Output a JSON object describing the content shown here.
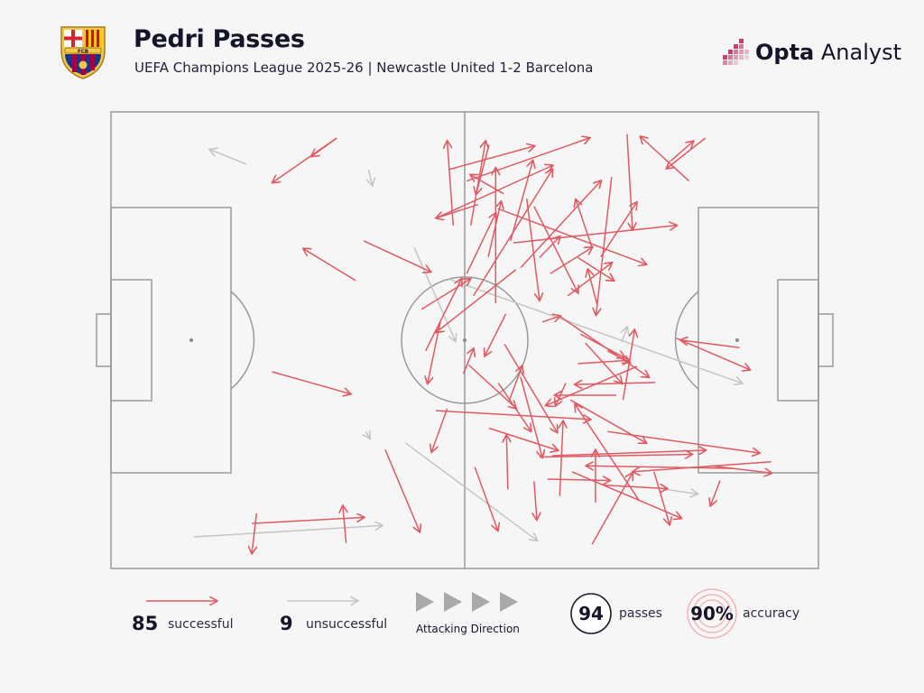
{
  "header": {
    "title": "Pedri Passes",
    "subtitle": "UEFA Champions League 2025-26 | Newcastle United 1-2 Barcelona",
    "brand_bold": "Opta",
    "brand_light": " Analyst",
    "crest_text": "FCB"
  },
  "colors": {
    "successful": "#e05a63",
    "unsuccessful": "#c5c5c5",
    "pitch_lines": "#9a9a9a",
    "background": "#f6f6f6",
    "accent": "#d63a6d"
  },
  "legend": {
    "successful_count": "85",
    "successful_label": "successful",
    "unsuccessful_count": "9",
    "unsuccessful_label": "unsuccessful",
    "attacking_direction": "Attacking Direction",
    "passes_count": "94",
    "passes_label": "passes",
    "accuracy_value": "90%",
    "accuracy_label": "accuracy"
  },
  "chart_data": {
    "type": "pass-map",
    "pitch": {
      "length": 105,
      "width": 68,
      "attacking_direction": "left-to-right"
    },
    "units": "metres; x from own goal line, y from top touchline",
    "totals": {
      "passes": 94,
      "successful": 85,
      "unsuccessful": 9,
      "accuracy_pct": 90
    },
    "unsuccessful": [
      [
        20.1,
        7.8,
        14.7,
        5.6
      ],
      [
        38.2,
        8.6,
        38.8,
        10.9
      ],
      [
        45.0,
        20.2,
        51.1,
        34.1
      ],
      [
        50.2,
        24.9,
        93.6,
        40.4
      ],
      [
        37.8,
        47.6,
        38.4,
        48.6
      ],
      [
        12.3,
        63.3,
        40.2,
        61.6
      ],
      [
        43.7,
        49.3,
        63.2,
        63.8
      ],
      [
        75.8,
        34.3,
        76.6,
        32.1
      ],
      [
        81.6,
        56.1,
        87.0,
        56.9
      ]
    ],
    "successful": [
      [
        33.5,
        3.9,
        29.8,
        6.6
      ],
      [
        33.5,
        3.9,
        24.0,
        10.5
      ],
      [
        37.5,
        19.2,
        47.4,
        23.8
      ],
      [
        36.3,
        25.1,
        28.6,
        20.4
      ],
      [
        23.9,
        38.7,
        35.5,
        42.0
      ],
      [
        53.4,
        16.9,
        55.6,
        4.4
      ],
      [
        54.5,
        13.8,
        48.3,
        15.8
      ],
      [
        52.8,
        10.3,
        71.0,
        3.9
      ],
      [
        48.3,
        15.8,
        65.5,
        8.0
      ],
      [
        50.8,
        16.9,
        49.9,
        4.4
      ],
      [
        50.1,
        8.6,
        62.8,
        5.1
      ],
      [
        56.1,
        4.9,
        54.2,
        12.2
      ],
      [
        58.3,
        12.2,
        53.4,
        9.4
      ],
      [
        52.8,
        24.1,
        57.1,
        15.1
      ],
      [
        56.0,
        21.6,
        57.9,
        13.4
      ],
      [
        57.1,
        28.5,
        57.1,
        8.4
      ],
      [
        59.3,
        19.2,
        62.6,
        7.3
      ],
      [
        53.8,
        27.4,
        65.5,
        8.6
      ],
      [
        52.3,
        39.0,
        53.8,
        35.3
      ],
      [
        60.1,
        23.5,
        48.3,
        32.8
      ],
      [
        60.8,
        23.2,
        72.7,
        10.3
      ],
      [
        58.6,
        30.1,
        55.5,
        36.3
      ],
      [
        46.1,
        29.4,
        53.3,
        24.9
      ],
      [
        48.9,
        31.2,
        47.0,
        40.4
      ],
      [
        46.7,
        35.6,
        52.0,
        24.9
      ],
      [
        57.4,
        14.4,
        79.4,
        22.7
      ],
      [
        59.7,
        19.5,
        83.9,
        16.9
      ],
      [
        61.7,
        12.9,
        63.6,
        28.0
      ],
      [
        62.8,
        14.1,
        69.3,
        26.9
      ],
      [
        63.6,
        21.7,
        66.6,
        18.6
      ],
      [
        65.2,
        24.1,
        71.4,
        20.2
      ],
      [
        67.8,
        27.4,
        74.3,
        22.5
      ],
      [
        72.2,
        28.9,
        70.8,
        23.5
      ],
      [
        69.3,
        21.7,
        74.6,
        25.1
      ],
      [
        71.4,
        20.2,
        69.0,
        13.1
      ],
      [
        74.3,
        9.7,
        72.0,
        30.2
      ],
      [
        72.7,
        21.6,
        78.0,
        13.5
      ],
      [
        76.6,
        3.3,
        77.4,
        17.5
      ],
      [
        88.2,
        3.9,
        82.5,
        8.4
      ],
      [
        85.8,
        10.3,
        78.6,
        3.7
      ],
      [
        83.1,
        7.3,
        86.4,
        4.4
      ],
      [
        69.7,
        33.1,
        76.2,
        36.6
      ],
      [
        64.0,
        31.3,
        66.6,
        30.4
      ],
      [
        66.4,
        30.3,
        79.8,
        39.5
      ],
      [
        73.7,
        35.6,
        77.0,
        37.3
      ],
      [
        70.4,
        34.4,
        75.8,
        40.4
      ],
      [
        80.8,
        40.3,
        68.9,
        40.6
      ],
      [
        69.3,
        37.5,
        76.9,
        37.0
      ],
      [
        76.0,
        42.9,
        77.7,
        32.5
      ],
      [
        75.0,
        42.2,
        65.9,
        42.2
      ],
      [
        78.1,
        37.9,
        64.6,
        43.7
      ],
      [
        93.3,
        35.1,
        84.6,
        34.0
      ],
      [
        83.9,
        33.7,
        94.8,
        38.4
      ],
      [
        68.2,
        42.9,
        79.4,
        49.3
      ],
      [
        73.7,
        47.6,
        96.2,
        50.8
      ],
      [
        67.5,
        40.4,
        66.0,
        43.7
      ],
      [
        59.1,
        43.0,
        61.0,
        37.9
      ],
      [
        57.5,
        40.4,
        62.3,
        47.5
      ],
      [
        60.8,
        39.5,
        64.0,
        51.4
      ],
      [
        58.4,
        34.6,
        66.2,
        47.7
      ],
      [
        53.1,
        37.7,
        60.1,
        44.1
      ],
      [
        48.2,
        44.5,
        71.1,
        45.8
      ],
      [
        49.9,
        44.2,
        47.6,
        50.6
      ],
      [
        56.1,
        47.1,
        66.3,
        50.4
      ],
      [
        63.6,
        51.4,
        86.2,
        51.0
      ],
      [
        65.5,
        51.2,
        88.2,
        50.4
      ],
      [
        78.4,
        57.9,
        68.9,
        43.6
      ],
      [
        80.6,
        53.6,
        82.9,
        61.4
      ],
      [
        58.9,
        56.2,
        58.7,
        48.2
      ],
      [
        62.8,
        55.0,
        63.2,
        60.7
      ],
      [
        66.6,
        57.2,
        67.1,
        46.1
      ],
      [
        71.9,
        58.2,
        71.9,
        50.4
      ],
      [
        68.4,
        53.6,
        84.6,
        60.5
      ],
      [
        64.8,
        54.7,
        74.0,
        54.9
      ],
      [
        71.4,
        64.4,
        77.4,
        53.8
      ],
      [
        92.5,
        53.1,
        70.6,
        52.7
      ],
      [
        89.1,
        52.7,
        98.0,
        53.8
      ],
      [
        98.0,
        52.1,
        77.5,
        53.6
      ],
      [
        90.4,
        54.9,
        89.0,
        58.6
      ],
      [
        73.3,
        55.6,
        82.5,
        56.1
      ],
      [
        40.7,
        50.3,
        45.8,
        62.5
      ],
      [
        20.9,
        61.3,
        37.5,
        60.4
      ],
      [
        34.9,
        64.2,
        34.4,
        58.7
      ],
      [
        21.6,
        59.8,
        20.9,
        65.7
      ],
      [
        54.0,
        52.9,
        57.4,
        62.3
      ]
    ]
  }
}
